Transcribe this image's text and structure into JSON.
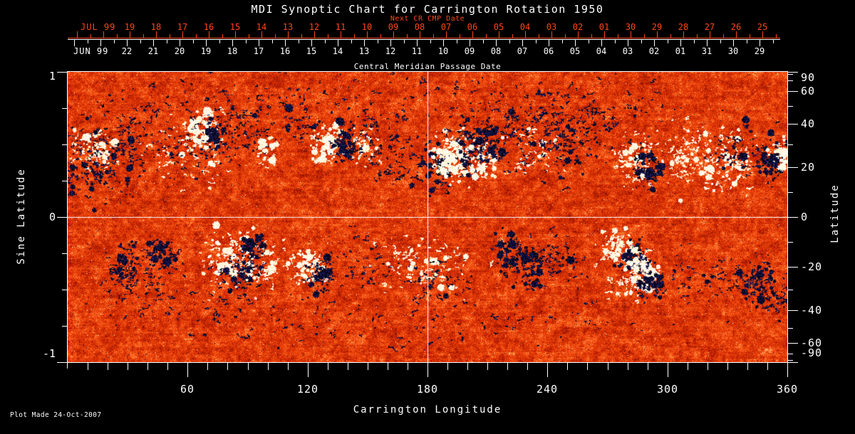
{
  "title": "MDI Synoptic Chart for Carrington Rotation 1950",
  "footer": "Plot Made 24-Oct-2007",
  "colors": {
    "background": "#000000",
    "foreground": "#ffffff",
    "date_axis_red": "#ff4619"
  },
  "chart_data": {
    "type": "heatmap",
    "description": "Full-disk solar synoptic magnetogram for Carrington Rotation 1950. Orange-red mottled quiet-sun field with bipolar active regions (white = positive polarity, dark navy/black = negative polarity) concentrated in two activity belts near sine latitude +0.4 and -0.35. White reference crosshair at longitude 180 and sine latitude 0.",
    "longitude_axis": {
      "title": "Carrington Longitude",
      "range": [
        0,
        360
      ],
      "major_ticks": [
        60,
        120,
        180,
        240,
        300,
        360
      ],
      "minor_step": 10
    },
    "sine_latitude_axis": {
      "title": "Sine Latitude",
      "range": [
        -1,
        1
      ],
      "tick_labels": [
        "1",
        "0",
        "-1"
      ],
      "tick_values": [
        1,
        0,
        -1
      ],
      "minor_values": [
        0.75,
        0.5,
        0.25,
        -0.25,
        -0.5,
        -0.75
      ]
    },
    "latitude_axis": {
      "title": "Latitude",
      "tick_labels": [
        "90",
        "60",
        "40",
        "20",
        "0",
        "-20",
        "-40",
        "-60",
        "-90"
      ],
      "tick_values": [
        90,
        60,
        40,
        20,
        0,
        -20,
        -40,
        -60,
        -90
      ],
      "minor_values": [
        80,
        70,
        50,
        30,
        10,
        -10,
        -30,
        -50,
        -70,
        -80
      ]
    },
    "next_cr_axis": {
      "title": "Next CR CMP Date",
      "month_label": "JUL 99",
      "day_labels": [
        "19",
        "18",
        "17",
        "16",
        "15",
        "14",
        "13",
        "12",
        "11",
        "10",
        "09",
        "08",
        "07",
        "06",
        "05",
        "04",
        "03",
        "02",
        "01",
        "30",
        "29",
        "28",
        "27",
        "26",
        "25"
      ]
    },
    "cmp_axis": {
      "title": "Central Meridian Passage Date",
      "month_label": "JUN 99",
      "day_labels": [
        "22",
        "21",
        "20",
        "19",
        "18",
        "17",
        "16",
        "15",
        "14",
        "13",
        "12",
        "11",
        "10",
        "09",
        "08",
        "07",
        "06",
        "05",
        "04",
        "03",
        "02",
        "01",
        "31",
        "30",
        "29"
      ]
    },
    "grid_lines": {
      "longitude": 180,
      "sine_latitude": 0
    },
    "colormap": {
      "background_stops": [
        [
          0.0,
          "#640800"
        ],
        [
          0.16,
          "#a01600"
        ],
        [
          0.36,
          "#ce2802"
        ],
        [
          0.55,
          "#ea3e08"
        ],
        [
          0.7,
          "#f85816"
        ],
        [
          0.82,
          "#ff762c"
        ],
        [
          0.9,
          "#ff9c4e"
        ],
        [
          0.96,
          "#ffcd82"
        ],
        [
          1.0,
          "#fff0c6"
        ]
      ],
      "negative_polarity": [
        "#020210",
        "#101040",
        "#262670"
      ],
      "positive_polarity": [
        "#ffffff",
        "#fff7de",
        "#ffe9ac"
      ]
    },
    "noise": {
      "seed": 20071024,
      "speckle_dark_rate": 0.0045,
      "speckle_light_rate": 0.0025
    },
    "region_format": "[longitude_deg, sine_latitude, sigma_lon_deg, sigma_sine_lat, polarity(-1 neg dark / +1 pos white), splat_count, blobbiness]",
    "active_regions": [
      [
        14,
        0.38,
        10,
        0.13,
        -1,
        130,
        0.2
      ],
      [
        13,
        0.47,
        5,
        0.07,
        1,
        65,
        0.45
      ],
      [
        30,
        0.52,
        8,
        0.12,
        -1,
        50,
        0.1
      ],
      [
        60,
        0.42,
        11,
        0.11,
        1,
        50,
        0.1
      ],
      [
        60,
        0.5,
        12,
        0.11,
        -1,
        55,
        0.08
      ],
      [
        68,
        0.6,
        4,
        0.06,
        1,
        70,
        0.6
      ],
      [
        74,
        0.56,
        3,
        0.05,
        -1,
        45,
        0.6
      ],
      [
        88,
        0.6,
        9,
        0.09,
        -1,
        50,
        0.1
      ],
      [
        100,
        0.45,
        2.5,
        0.05,
        1,
        25,
        0.5
      ],
      [
        118,
        0.62,
        6,
        0.07,
        -1,
        30,
        0.15
      ],
      [
        130,
        0.52,
        4,
        0.07,
        1,
        55,
        0.5
      ],
      [
        139,
        0.5,
        3.5,
        0.06,
        -1,
        50,
        0.5
      ],
      [
        151,
        0.55,
        9,
        0.09,
        -1,
        40,
        0.1
      ],
      [
        148,
        0.5,
        5,
        0.07,
        1,
        30,
        0.2
      ],
      [
        166,
        0.4,
        8,
        0.11,
        -1,
        45,
        0.1
      ],
      [
        185,
        0.34,
        4,
        0.09,
        -1,
        70,
        0.4
      ],
      [
        193,
        0.42,
        5,
        0.08,
        1,
        115,
        0.6
      ],
      [
        201,
        0.43,
        3,
        0.07,
        -1,
        45,
        0.5
      ],
      [
        207,
        0.38,
        3.5,
        0.07,
        1,
        55,
        0.5
      ],
      [
        213,
        0.46,
        3,
        0.06,
        -1,
        35,
        0.4
      ],
      [
        206,
        0.57,
        9,
        0.09,
        -1,
        45,
        0.1
      ],
      [
        243,
        0.55,
        13,
        0.13,
        -1,
        150,
        0.15
      ],
      [
        230,
        0.44,
        8,
        0.09,
        1,
        30,
        0.1
      ],
      [
        284,
        0.38,
        5,
        0.08,
        1,
        65,
        0.4
      ],
      [
        291,
        0.33,
        4,
        0.06,
        -1,
        55,
        0.5
      ],
      [
        312,
        0.4,
        9,
        0.1,
        1,
        80,
        0.25
      ],
      [
        330,
        0.38,
        8,
        0.1,
        1,
        70,
        0.3
      ],
      [
        336,
        0.46,
        8,
        0.08,
        -1,
        45,
        0.15
      ],
      [
        352,
        0.38,
        4,
        0.07,
        -1,
        60,
        0.5
      ],
      [
        357,
        0.43,
        2.5,
        0.05,
        1,
        35,
        0.5
      ],
      [
        180,
        0.82,
        60,
        0.08,
        -1,
        90,
        0
      ],
      [
        255,
        0.7,
        25,
        0.09,
        -1,
        55,
        0.05
      ],
      [
        60,
        0.78,
        30,
        0.08,
        -1,
        35,
        0
      ],
      [
        28,
        -0.34,
        4,
        0.08,
        -1,
        60,
        0.35
      ],
      [
        46,
        -0.26,
        5,
        0.06,
        -1,
        55,
        0.3
      ],
      [
        38,
        -0.42,
        9,
        0.09,
        -1,
        35,
        0.05
      ],
      [
        82,
        -0.3,
        7,
        0.1,
        1,
        110,
        0.5
      ],
      [
        92,
        -0.25,
        3,
        0.06,
        -1,
        50,
        0.55
      ],
      [
        86,
        -0.41,
        6,
        0.07,
        -1,
        45,
        0.2
      ],
      [
        101,
        -0.33,
        5,
        0.08,
        1,
        40,
        0.3
      ],
      [
        120,
        -0.33,
        4,
        0.07,
        1,
        60,
        0.5
      ],
      [
        127,
        -0.38,
        3,
        0.06,
        -1,
        45,
        0.55
      ],
      [
        145,
        -0.33,
        9,
        0.1,
        -1,
        35,
        0.05
      ],
      [
        178,
        -0.35,
        12,
        0.1,
        1,
        75,
        0.2
      ],
      [
        186,
        -0.46,
        8,
        0.08,
        -1,
        40,
        0.1
      ],
      [
        222,
        -0.25,
        4,
        0.07,
        -1,
        55,
        0.5
      ],
      [
        233,
        -0.35,
        5,
        0.08,
        -1,
        65,
        0.45
      ],
      [
        246,
        -0.3,
        6,
        0.08,
        -1,
        35,
        0.15
      ],
      [
        274,
        -0.22,
        4,
        0.06,
        1,
        60,
        0.55
      ],
      [
        283,
        -0.28,
        3.5,
        0.06,
        -1,
        55,
        0.6
      ],
      [
        288,
        -0.36,
        4,
        0.07,
        1,
        70,
        0.55
      ],
      [
        292,
        -0.45,
        3.5,
        0.06,
        -1,
        45,
        0.5
      ],
      [
        280,
        -0.47,
        5,
        0.06,
        1,
        30,
        0.3
      ],
      [
        320,
        -0.42,
        12,
        0.1,
        -1,
        45,
        0.05
      ],
      [
        345,
        -0.45,
        5,
        0.08,
        -1,
        65,
        0.4
      ],
      [
        355,
        -0.55,
        6,
        0.07,
        -1,
        35,
        0.2
      ],
      [
        180,
        -0.75,
        60,
        0.08,
        -1,
        65,
        0
      ],
      [
        60,
        -0.62,
        30,
        0.08,
        -1,
        40,
        0
      ]
    ]
  }
}
